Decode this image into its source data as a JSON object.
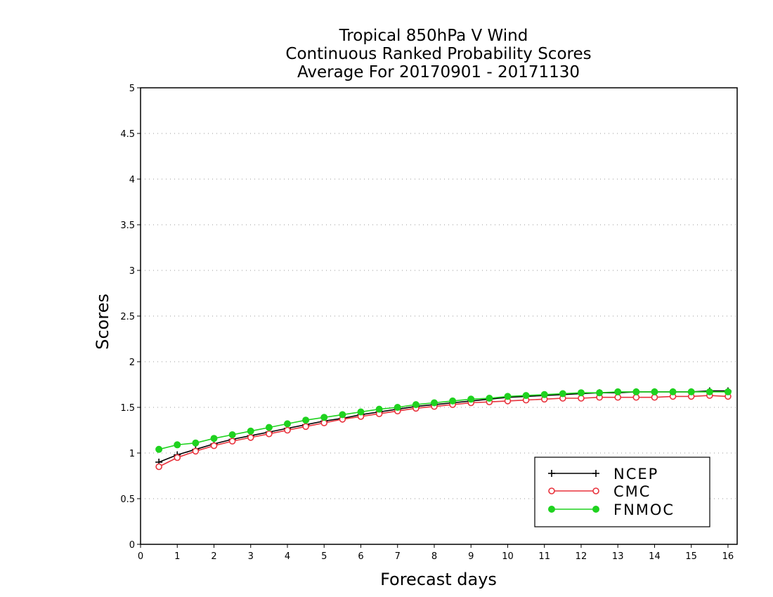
{
  "chart_data": {
    "type": "line",
    "title": [
      "Tropical 850hPa V Wind",
      "Continuous Ranked Probability Scores",
      "Average For 20170901 - 20171130"
    ],
    "xlabel": "Forecast days",
    "ylabel": "Scores",
    "xlim": [
      0,
      16.25
    ],
    "ylim": [
      0,
      5
    ],
    "xticks": [
      0,
      1,
      2,
      3,
      4,
      5,
      6,
      7,
      8,
      9,
      10,
      11,
      12,
      13,
      14,
      15,
      16
    ],
    "yticks": [
      0,
      0.5,
      1,
      1.5,
      2,
      2.5,
      3,
      3.5,
      4,
      4.5,
      5
    ],
    "ytick_labels": [
      "0",
      "0.5",
      "1",
      "1.5",
      "2",
      "2.5",
      "3",
      "3.5",
      "4",
      "4.5",
      "5"
    ],
    "grid": "horizontal dotted",
    "legend_position": "bottom-right",
    "x": [
      0.5,
      1,
      1.5,
      2,
      2.5,
      3,
      3.5,
      4,
      4.5,
      5,
      5.5,
      6,
      6.5,
      7,
      7.5,
      8,
      8.5,
      9,
      9.5,
      10,
      10.5,
      11,
      11.5,
      12,
      12.5,
      13,
      13.5,
      14,
      14.5,
      15,
      15.5,
      16
    ],
    "series": [
      {
        "name": "NCEP",
        "color": "#000000",
        "marker": "plus",
        "values": [
          0.9,
          0.98,
          1.04,
          1.1,
          1.15,
          1.19,
          1.23,
          1.27,
          1.31,
          1.35,
          1.38,
          1.42,
          1.45,
          1.48,
          1.51,
          1.53,
          1.55,
          1.57,
          1.59,
          1.61,
          1.62,
          1.63,
          1.64,
          1.65,
          1.66,
          1.66,
          1.67,
          1.67,
          1.67,
          1.67,
          1.68,
          1.68
        ]
      },
      {
        "name": "CMC",
        "color": "#e8323c",
        "marker": "open-circle",
        "values": [
          0.85,
          0.95,
          1.02,
          1.08,
          1.13,
          1.17,
          1.21,
          1.25,
          1.29,
          1.33,
          1.37,
          1.4,
          1.43,
          1.46,
          1.49,
          1.51,
          1.53,
          1.55,
          1.56,
          1.57,
          1.58,
          1.59,
          1.6,
          1.6,
          1.61,
          1.61,
          1.61,
          1.61,
          1.62,
          1.62,
          1.63,
          1.62
        ]
      },
      {
        "name": "FNMOC",
        "color": "#1fd21f",
        "marker": "filled-circle",
        "values": [
          1.04,
          1.09,
          1.11,
          1.16,
          1.2,
          1.24,
          1.28,
          1.32,
          1.36,
          1.39,
          1.42,
          1.45,
          1.48,
          1.5,
          1.53,
          1.55,
          1.57,
          1.59,
          1.6,
          1.62,
          1.63,
          1.64,
          1.65,
          1.66,
          1.66,
          1.67,
          1.67,
          1.67,
          1.67,
          1.67,
          1.67,
          1.67
        ]
      }
    ]
  }
}
